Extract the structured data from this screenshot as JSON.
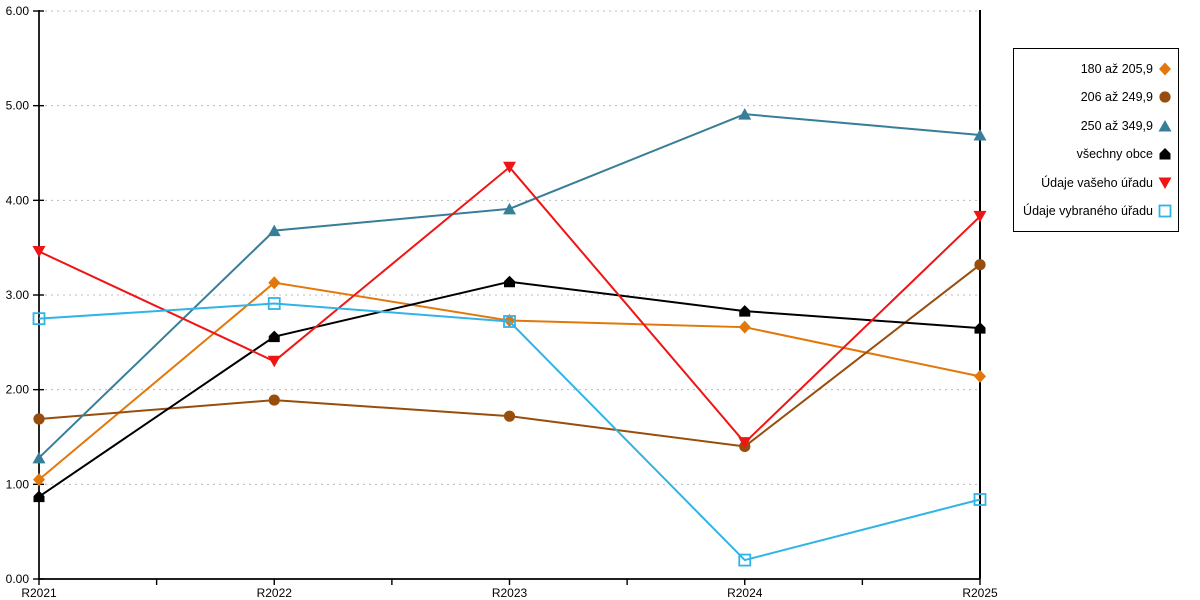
{
  "chart_data": {
    "type": "line",
    "title": "",
    "xlabel": "",
    "ylabel": "",
    "categories": [
      "R2021",
      "R2022",
      "R2023",
      "R2024",
      "R2025"
    ],
    "series": [
      {
        "name": "180 až 205,9",
        "color": "#E2780C",
        "marker": "diamond",
        "values": [
          1.05,
          3.13,
          2.73,
          2.66,
          2.14
        ]
      },
      {
        "name": "206 až 249,9",
        "color": "#984D0D",
        "marker": "circle",
        "values": [
          1.69,
          1.89,
          1.72,
          1.4,
          3.32
        ]
      },
      {
        "name": "250 až 349,9",
        "color": "#377F99",
        "marker": "triangle-up",
        "values": [
          1.28,
          3.68,
          3.91,
          4.91,
          4.69
        ]
      },
      {
        "name": "všechny obce",
        "color": "#000000",
        "marker": "pentagon",
        "values": [
          0.87,
          2.56,
          3.14,
          2.83,
          2.65
        ]
      },
      {
        "name": "Údaje vašeho úřadu",
        "color": "#F01414",
        "marker": "triangle-down",
        "values": [
          3.46,
          2.3,
          4.35,
          1.44,
          3.83
        ]
      },
      {
        "name": "Údaje vybraného úřadu",
        "color": "#30B4E8",
        "marker": "square-open",
        "values": [
          2.75,
          2.91,
          2.72,
          0.2,
          0.84
        ]
      }
    ],
    "ylim": [
      0,
      6
    ],
    "y_tick_step": 1,
    "y_tick_labels": [
      "0.00",
      "1.00",
      "2.00",
      "3.00",
      "4.00",
      "5.00",
      "6.00"
    ],
    "x_minor_ticks_per_interval": 2,
    "grid": "horizontal-dotted",
    "gridline_color": "#BBBBBB",
    "axis_color": "#000000",
    "legend_position": "right"
  }
}
